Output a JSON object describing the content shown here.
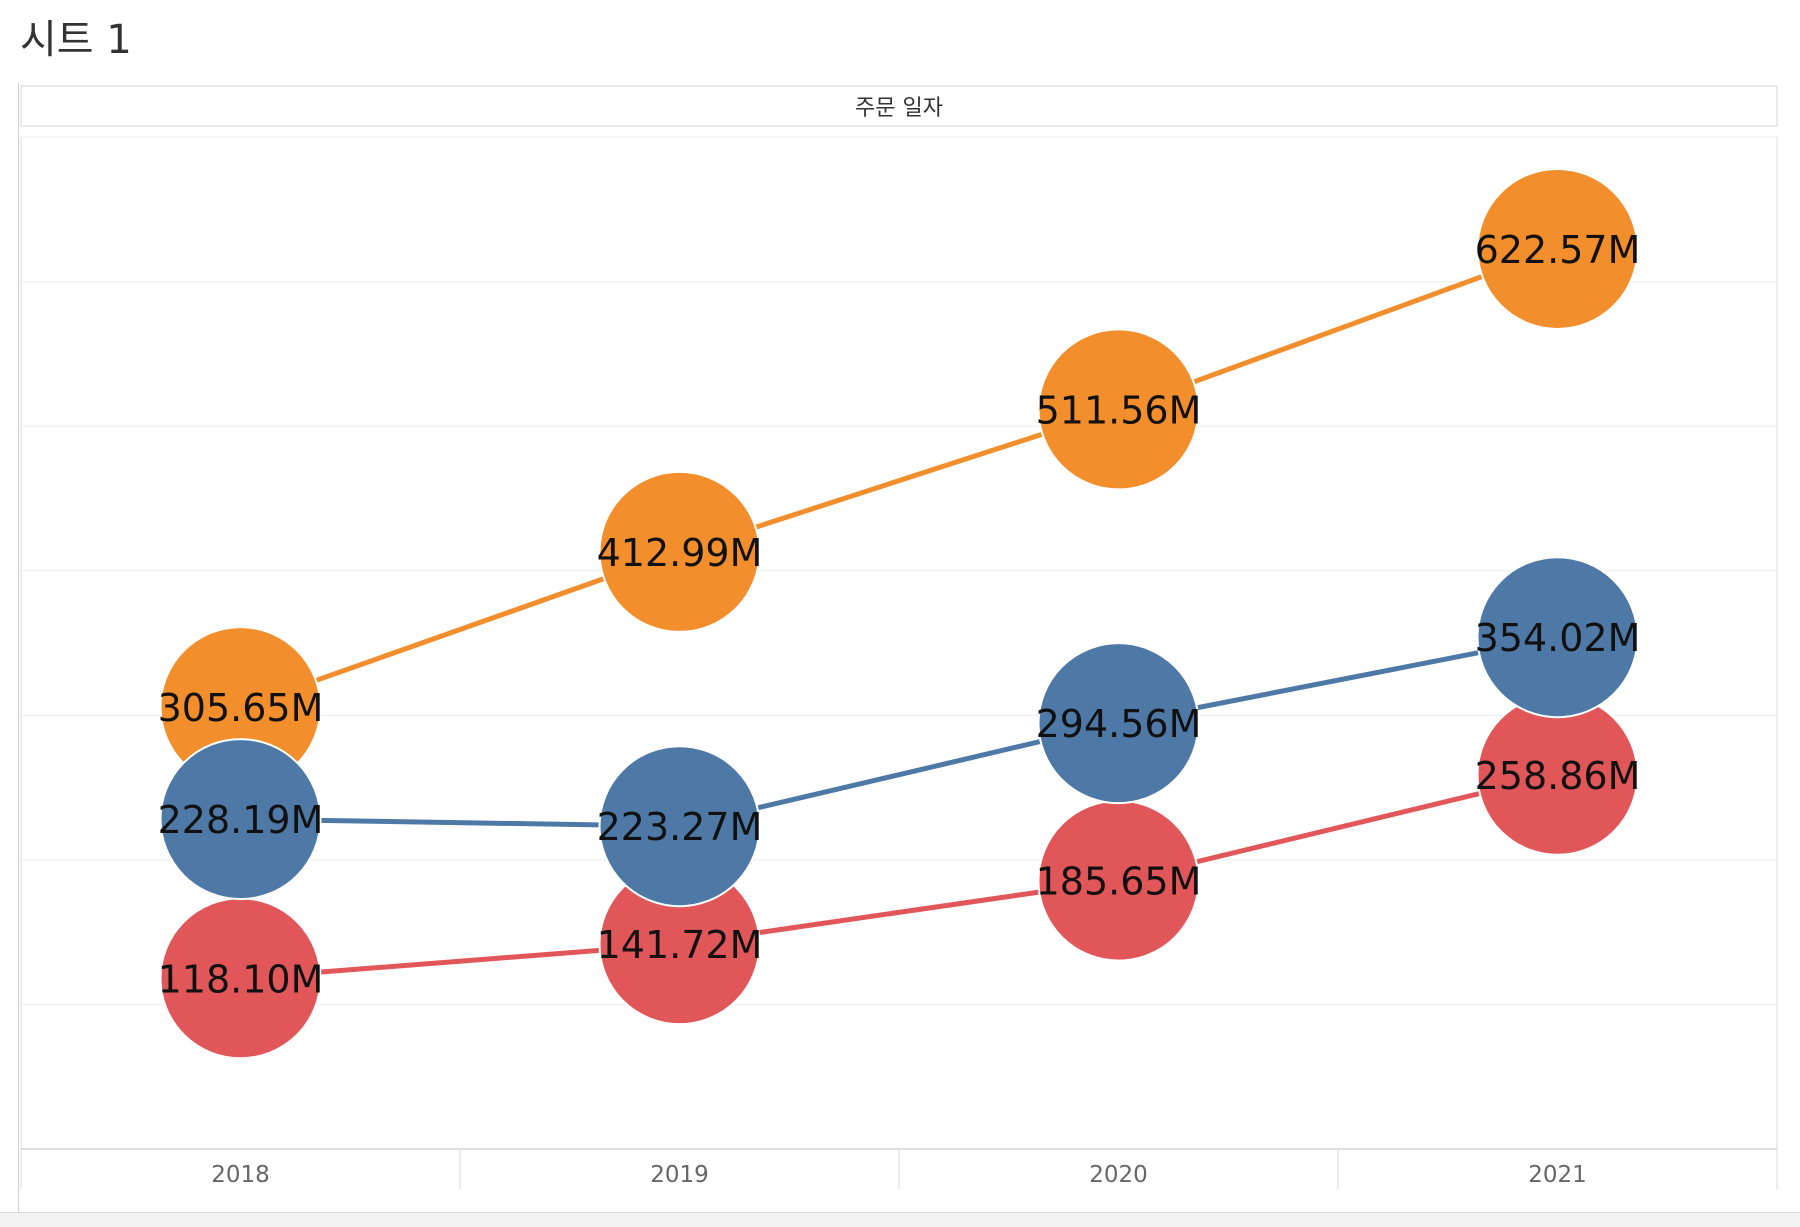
{
  "sheet": {
    "title": "시트 1"
  },
  "chart_data": {
    "type": "line",
    "column_header": "주문 일자",
    "categories": [
      "2018",
      "2019",
      "2020",
      "2021"
    ],
    "ylim": [
      0,
      700
    ],
    "grid": true,
    "series": [
      {
        "color": "#F28E2B",
        "values": [
          305.65,
          412.99,
          511.56,
          622.57
        ],
        "labels": [
          "305.65M",
          "412.99M",
          "511.56M",
          "622.57M"
        ]
      },
      {
        "color": "#E15759",
        "values": [
          118.1,
          141.72,
          185.65,
          258.86
        ],
        "labels": [
          "118.10M",
          "141.72M",
          "185.65M",
          "258.86M"
        ]
      },
      {
        "color": "#4E79A7",
        "values": [
          228.19,
          223.27,
          294.56,
          354.02
        ],
        "labels": [
          "228.19M",
          "223.27M",
          "294.56M",
          "354.02M"
        ]
      }
    ]
  }
}
